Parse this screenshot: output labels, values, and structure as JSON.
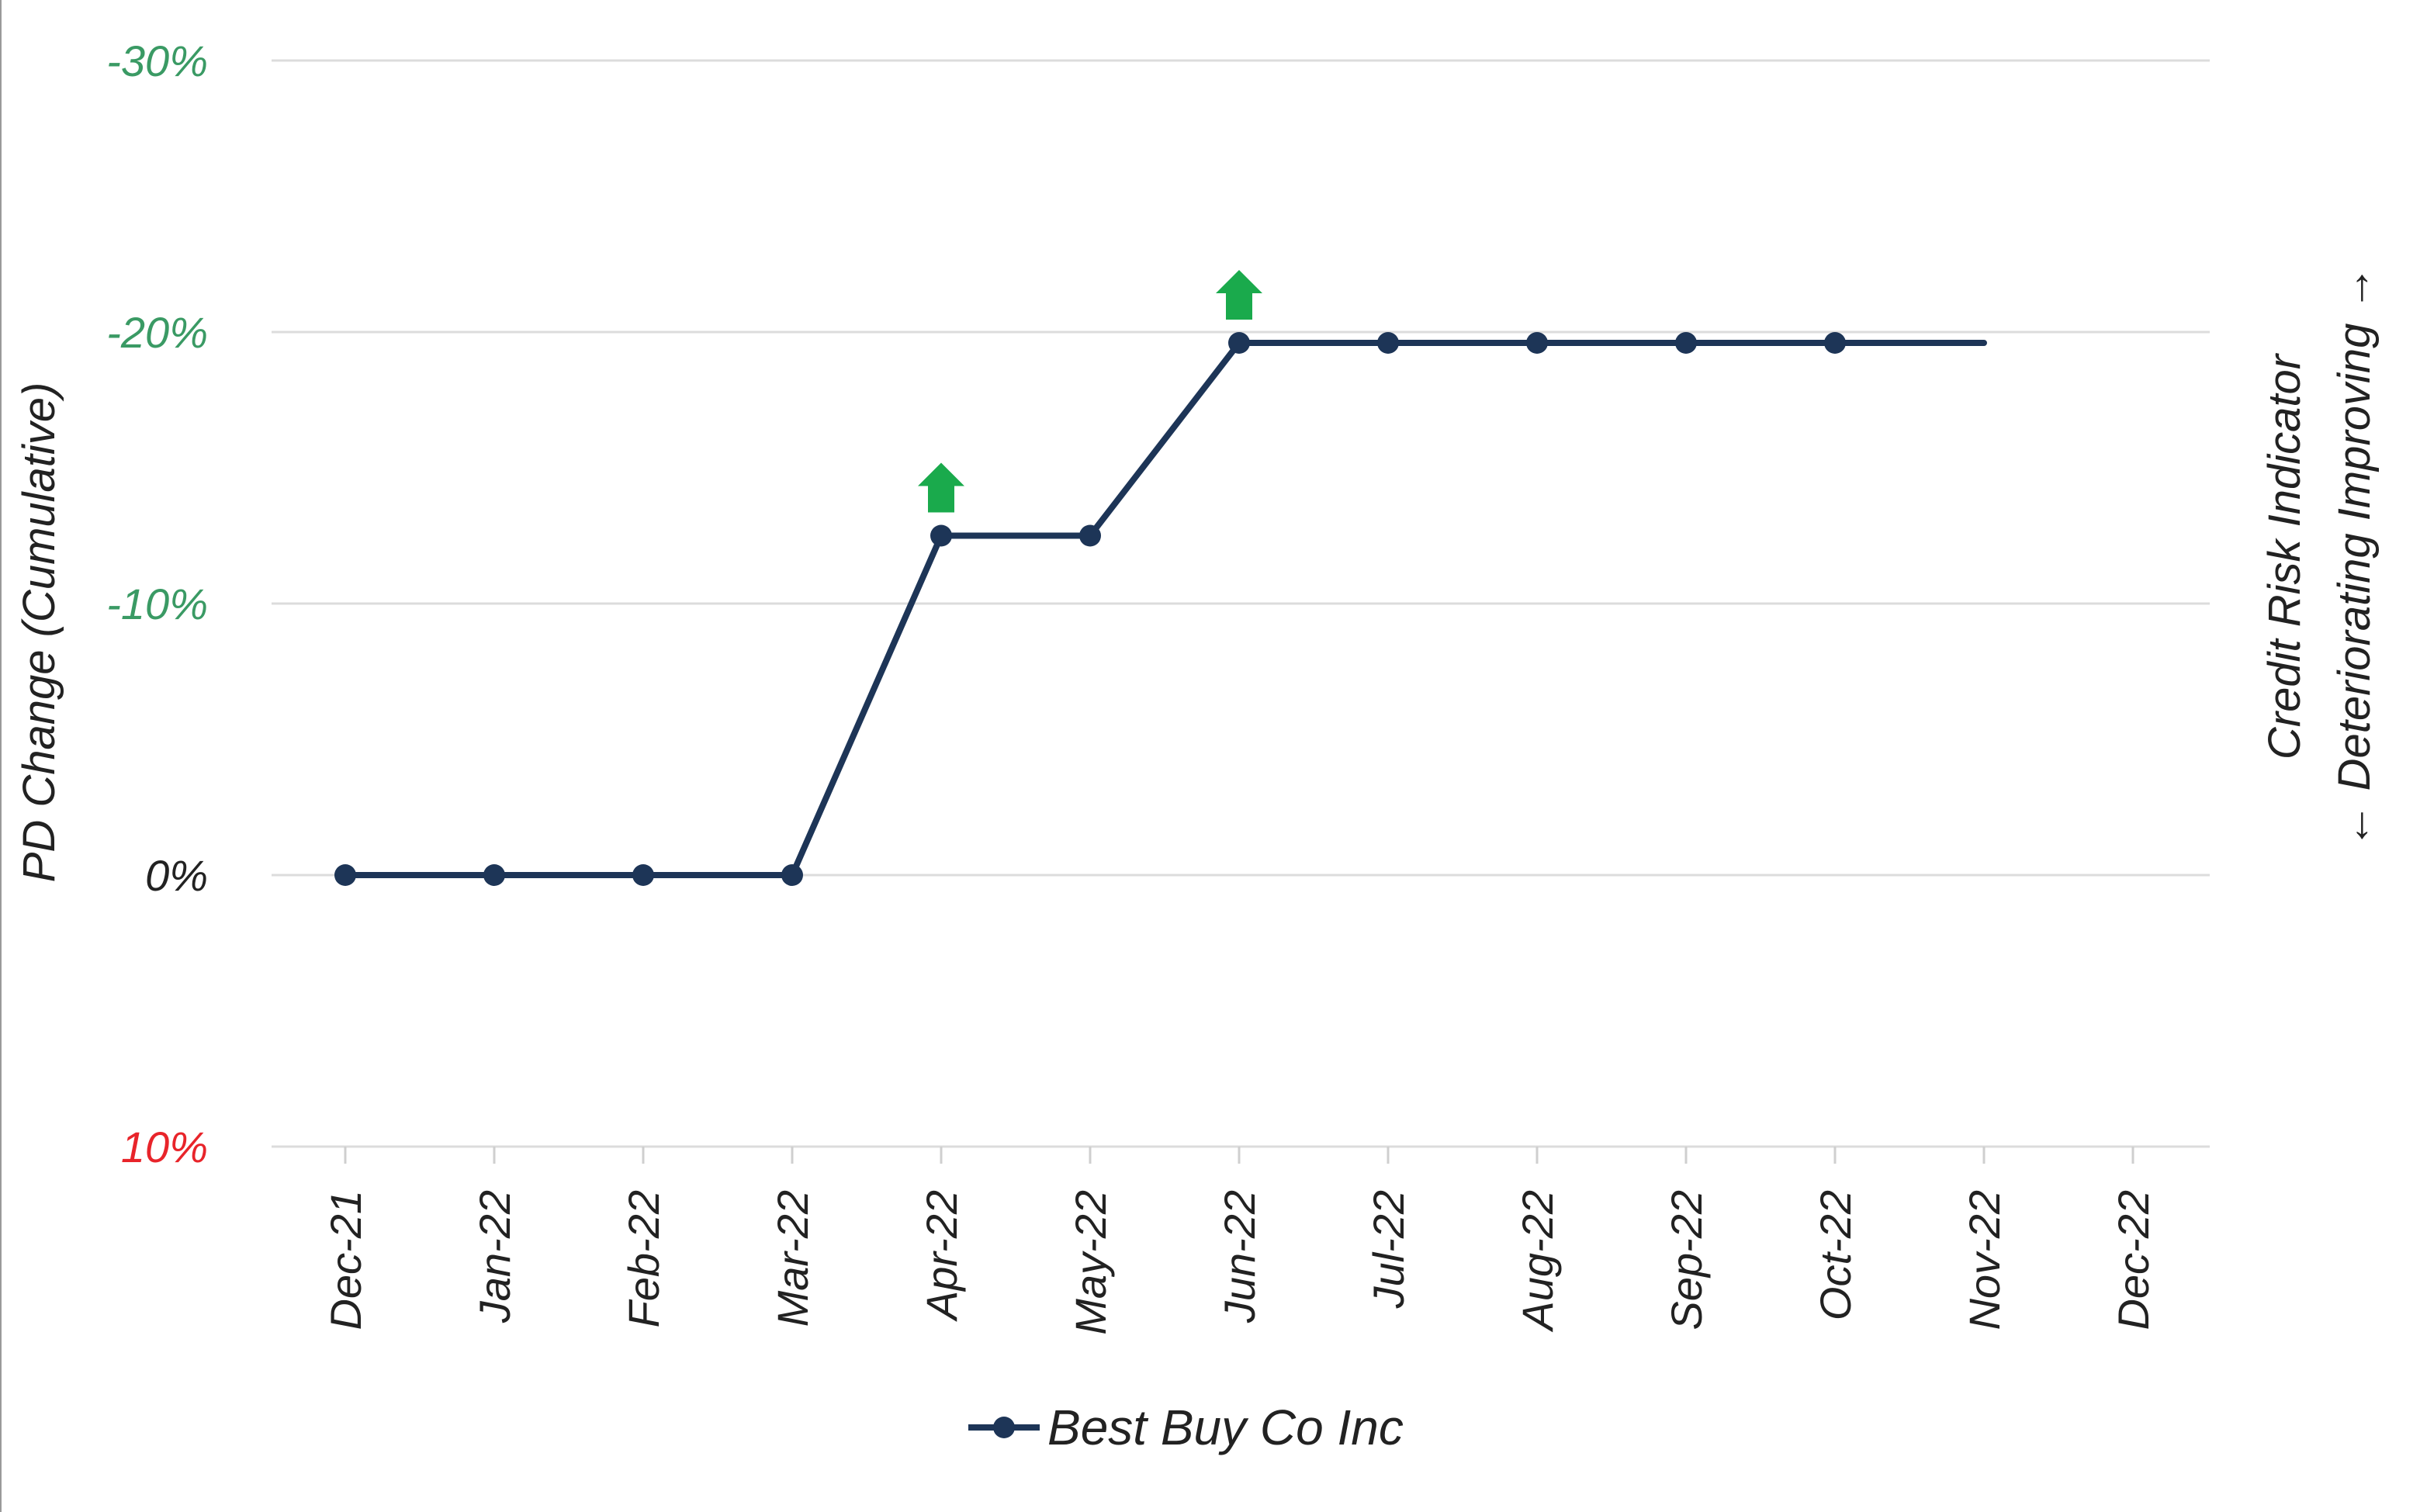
{
  "chart_data": {
    "type": "line",
    "title": "",
    "ylabel": "PD Change (Cumulative)",
    "y2label": {
      "line1": "Credit Risk Indicator",
      "line2": "← Deteriorating Improving →"
    },
    "x": [
      "Dec-21",
      "Jan-22",
      "Feb-22",
      "Mar-22",
      "Apr-22",
      "May-22",
      "Jun-22",
      "Jul-22",
      "Aug-22",
      "Sep-22",
      "Oct-22",
      "Nov-22",
      "Dec-22"
    ],
    "y_ticks": [
      {
        "value": -30,
        "label": "-30%",
        "color": "#3a9a64"
      },
      {
        "value": -20,
        "label": "-20%",
        "color": "#3a9a64"
      },
      {
        "value": -10,
        "label": "-10%",
        "color": "#3a9a64"
      },
      {
        "value": 0,
        "label": "0%",
        "color": "#222222"
      },
      {
        "value": 10,
        "label": "10%",
        "color": "#e8242a"
      }
    ],
    "ylim": [
      10,
      -30
    ],
    "y_inverted": true,
    "grid": true,
    "legend_position": "bottom",
    "series": [
      {
        "name": "Best Buy Co Inc",
        "color": "#1d3557",
        "values": [
          0,
          0,
          0,
          0,
          -12.5,
          -12.5,
          -19.6,
          -19.6,
          -19.6,
          -19.6,
          -19.6,
          -19.6,
          null
        ],
        "markers": [
          true,
          true,
          true,
          true,
          true,
          true,
          true,
          true,
          true,
          true,
          true,
          false,
          false
        ]
      }
    ],
    "annotations": [
      {
        "type": "up-arrow",
        "icon": "green-up-arrow-icon",
        "x": "Apr-22",
        "y": -12.5,
        "color": "#1aaa4c"
      },
      {
        "type": "up-arrow",
        "icon": "green-up-arrow-icon",
        "x": "Jun-22",
        "y": -19.6,
        "color": "#1aaa4c"
      }
    ]
  }
}
